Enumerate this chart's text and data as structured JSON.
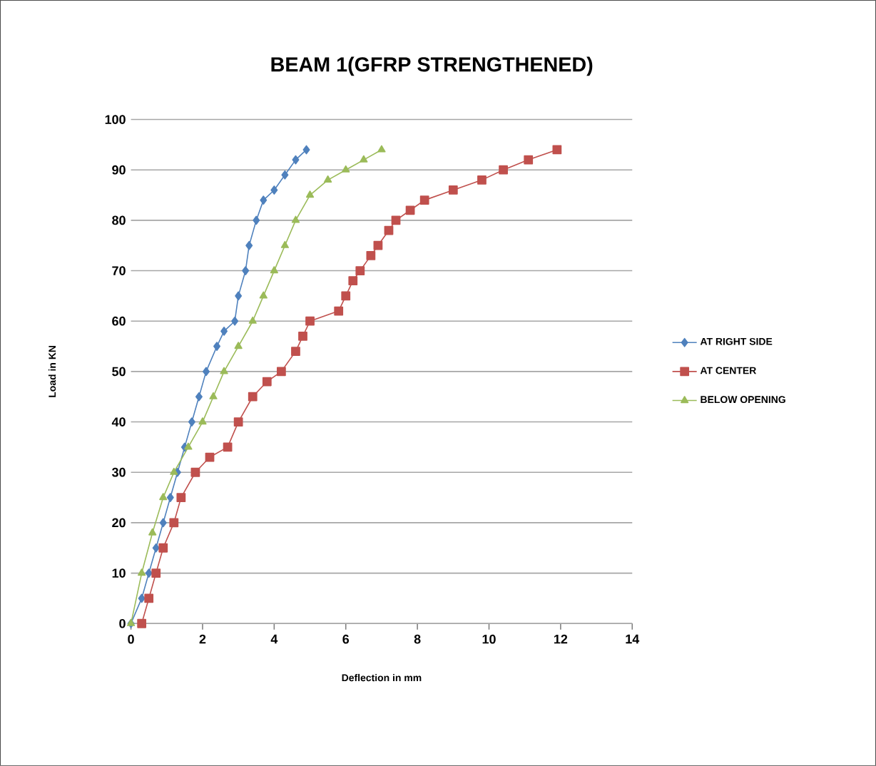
{
  "chart_data": {
    "type": "line",
    "title": "BEAM 1(GFRP STRENGTHENED)",
    "xlabel": "Deflection in mm",
    "ylabel": "Load in KN",
    "xlim": [
      0,
      14
    ],
    "xticks": [
      0,
      2,
      4,
      6,
      8,
      10,
      12,
      14
    ],
    "ylim": [
      0,
      100
    ],
    "yticks": [
      0,
      10,
      20,
      30,
      40,
      50,
      60,
      70,
      80,
      90,
      100
    ],
    "grid": "y",
    "legend": "right",
    "line_style": "solid",
    "series": [
      {
        "name": "AT RIGHT SIDE",
        "color": "#4f81bd",
        "marker": "diamond",
        "x": [
          0,
          0.3,
          0.5,
          0.7,
          0.9,
          1.1,
          1.3,
          1.5,
          1.7,
          1.9,
          2.1,
          2.4,
          2.6,
          2.9,
          3.0,
          3.2,
          3.3,
          3.5,
          3.7,
          4.0,
          4.3,
          4.6,
          4.9
        ],
        "values": [
          0,
          5,
          10,
          15,
          20,
          25,
          30,
          35,
          40,
          45,
          50,
          55,
          58,
          60,
          65,
          70,
          75,
          80,
          84,
          86,
          89,
          92,
          94
        ]
      },
      {
        "name": "AT CENTER",
        "color": "#c0504d",
        "marker": "square",
        "x": [
          0.3,
          0.5,
          0.7,
          0.9,
          1.2,
          1.4,
          1.8,
          2.2,
          2.7,
          3.0,
          3.4,
          3.8,
          4.2,
          4.6,
          4.8,
          5.0,
          5.8,
          6.0,
          6.2,
          6.4,
          6.7,
          6.9,
          7.2,
          7.4,
          7.8,
          8.2,
          9.0,
          9.8,
          10.4,
          11.1,
          11.9
        ],
        "values": [
          0,
          5,
          10,
          15,
          20,
          25,
          30,
          33,
          35,
          40,
          45,
          48,
          50,
          54,
          57,
          60,
          62,
          65,
          68,
          70,
          73,
          75,
          78,
          80,
          82,
          84,
          86,
          88,
          90,
          92,
          94
        ]
      },
      {
        "name": "BELOW OPENING",
        "color": "#9bbb59",
        "marker": "triangle",
        "x": [
          0,
          0.3,
          0.6,
          0.9,
          1.2,
          1.6,
          2.0,
          2.3,
          2.6,
          3.0,
          3.4,
          3.7,
          4.0,
          4.3,
          4.6,
          5.0,
          5.5,
          6.0,
          6.5,
          7.0
        ],
        "values": [
          0,
          10,
          18,
          25,
          30,
          35,
          40,
          45,
          50,
          55,
          60,
          65,
          70,
          75,
          80,
          85,
          88,
          90,
          92,
          94
        ]
      }
    ]
  }
}
